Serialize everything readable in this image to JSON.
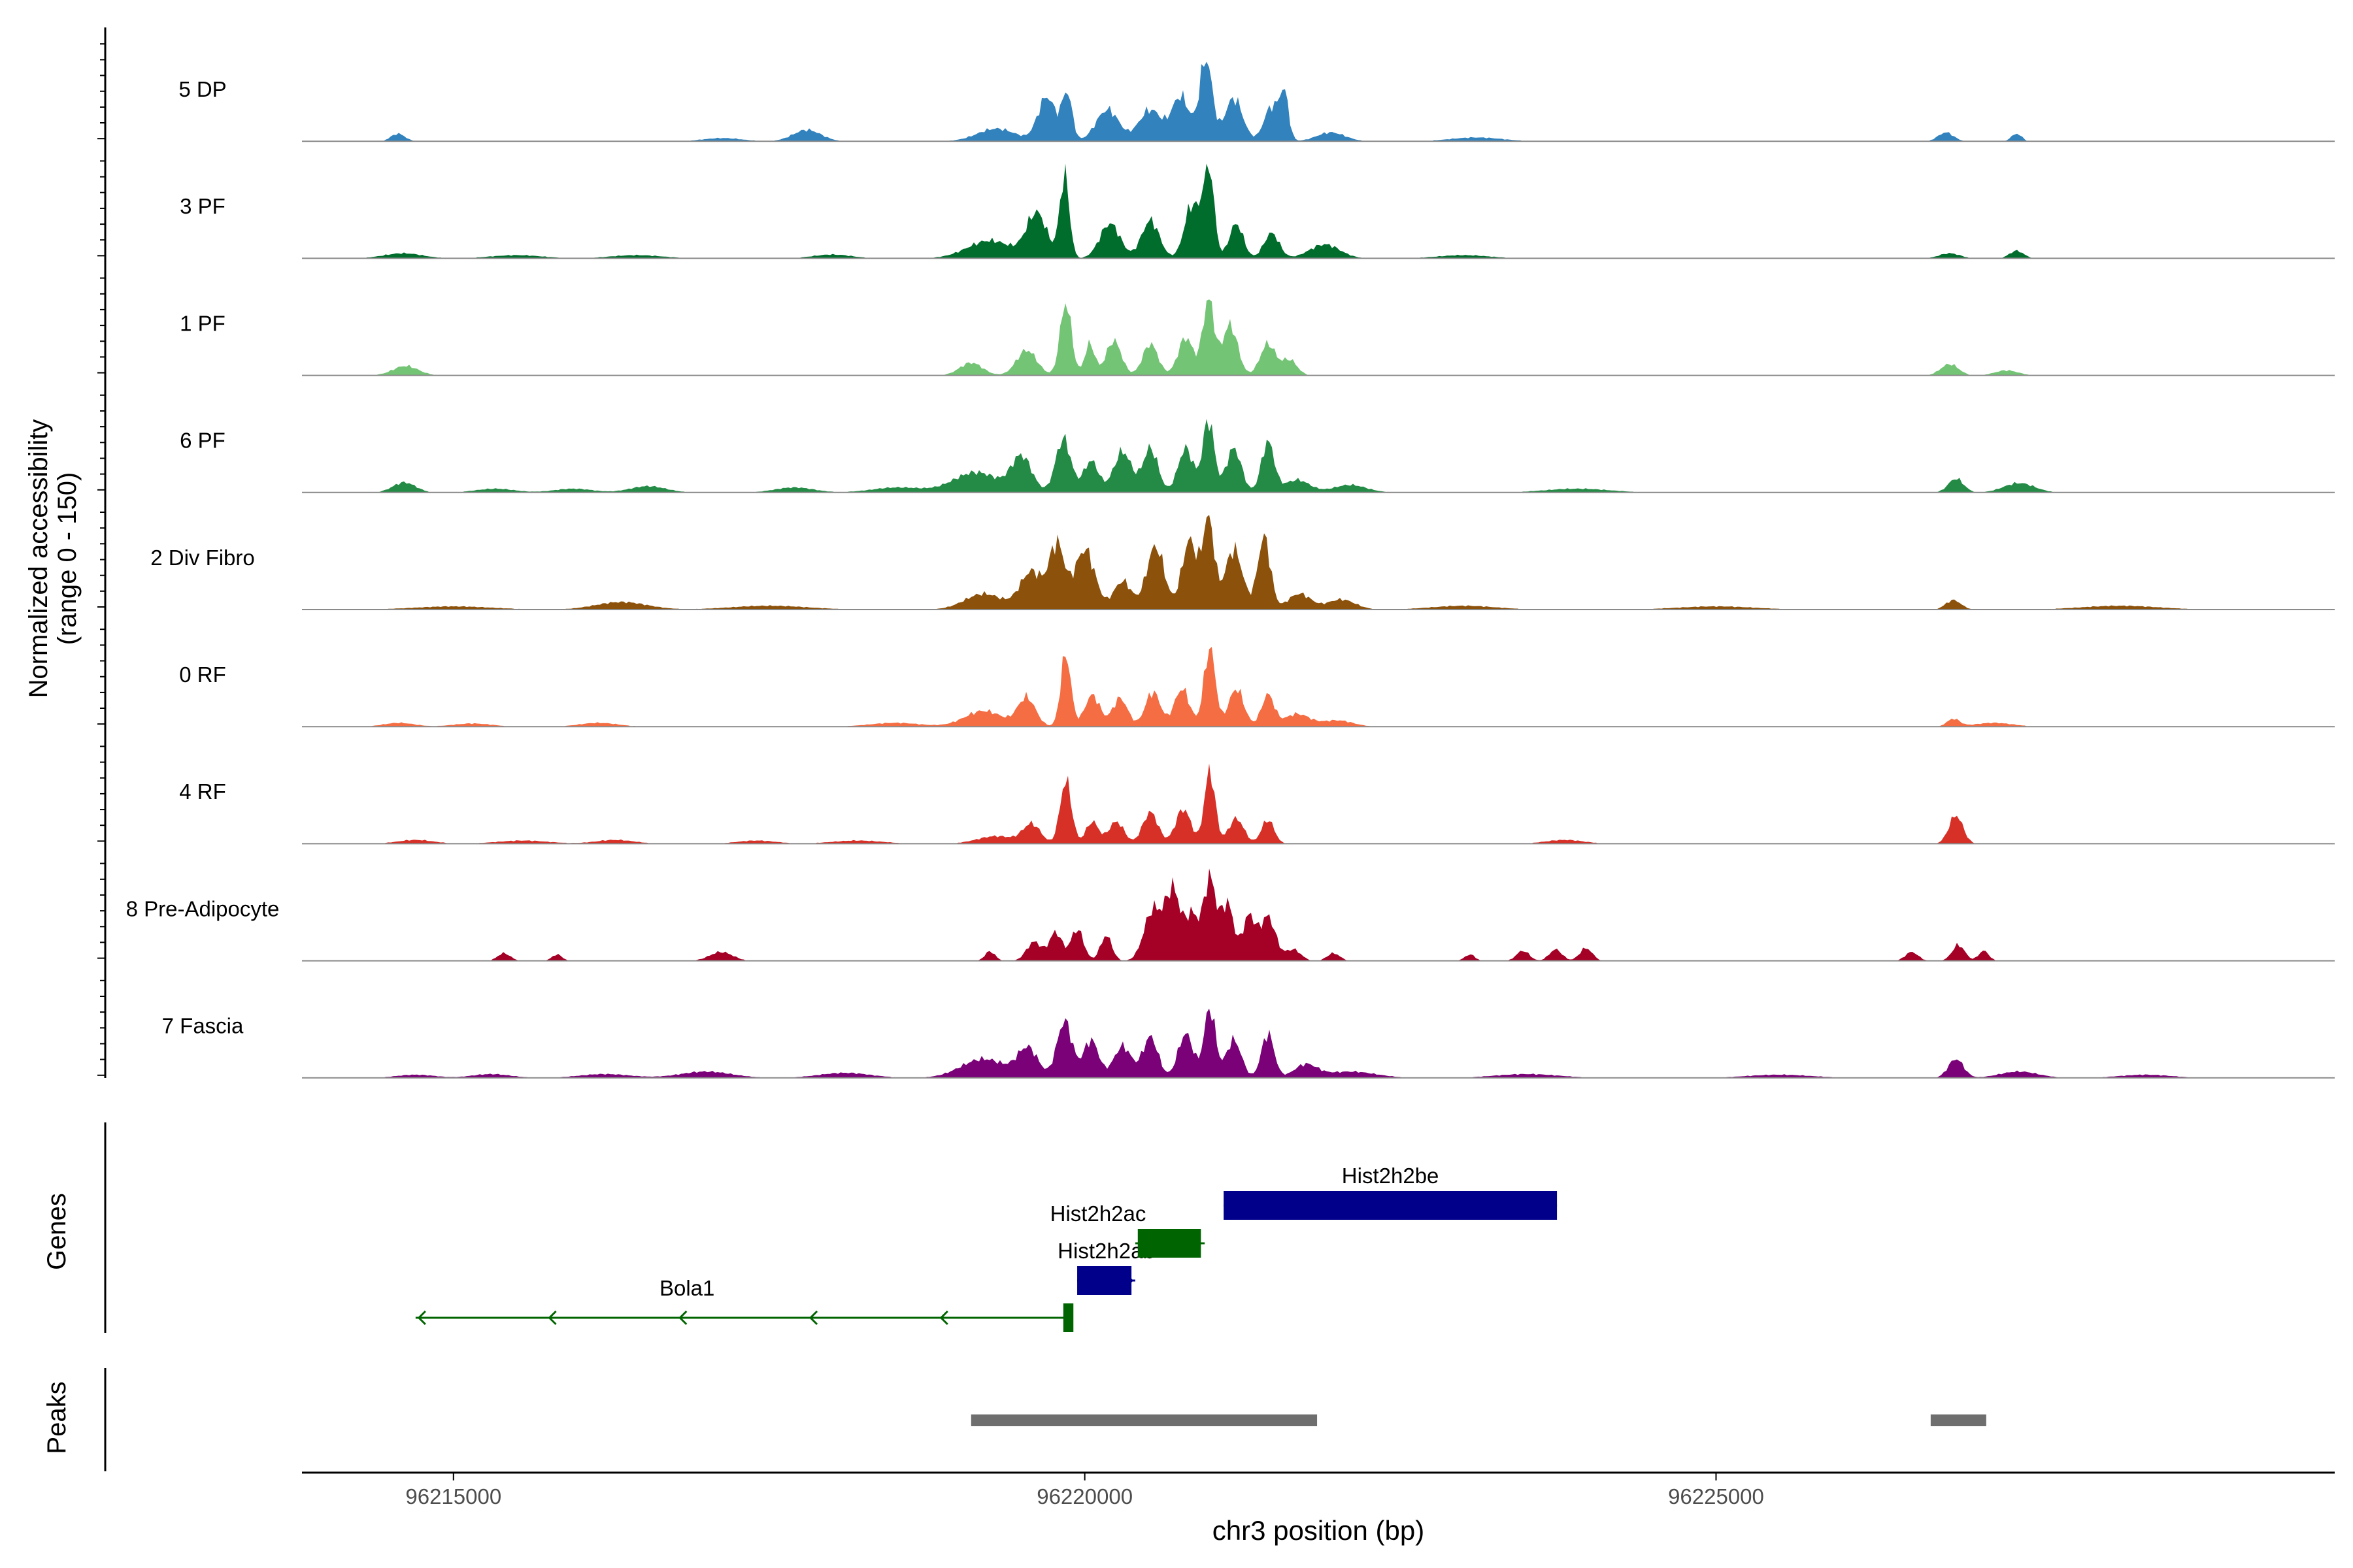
{
  "chart_data": {
    "type": "area",
    "title": "",
    "region": "chr3",
    "x_range": [
      96213800,
      96229900
    ],
    "xlabel": "chr3 position (bp)",
    "x_ticks": [
      96215000,
      96220000,
      96225000
    ],
    "x_tick_labels": [
      "96215000",
      "96220000",
      "96225000"
    ],
    "ylabel": "Normalized accessibility",
    "ylabel_sub": "(range 0 - 150)",
    "ylim": [
      0,
      150
    ],
    "series": [
      {
        "name": "5 DP",
        "color": "#3182bd",
        "peaks": [
          [
            96214560,
            12,
            55
          ],
          [
            96217130,
            5,
            150
          ],
          [
            96217800,
            18,
            110
          ],
          [
            96219300,
            20,
            150
          ],
          [
            96219700,
            70,
            70
          ],
          [
            96219860,
            75,
            40
          ],
          [
            96220180,
            50,
            90
          ],
          [
            96220520,
            50,
            90
          ],
          [
            96220760,
            70,
            70
          ],
          [
            96220960,
            130,
            50
          ],
          [
            96221180,
            68,
            70
          ],
          [
            96221480,
            55,
            60
          ],
          [
            96221580,
            70,
            35
          ],
          [
            96221950,
            14,
            110
          ],
          [
            96223100,
            6,
            200
          ],
          [
            96226820,
            14,
            60
          ],
          [
            96227380,
            12,
            40
          ]
        ]
      },
      {
        "name": "3 PF",
        "color": "#006d2c",
        "peaks": [
          [
            96214600,
            8,
            150
          ],
          [
            96215500,
            5,
            200
          ],
          [
            96216450,
            5,
            200
          ],
          [
            96218000,
            6,
            150
          ],
          [
            96219250,
            28,
            180
          ],
          [
            96219620,
            70,
            80
          ],
          [
            96219840,
            130,
            38
          ],
          [
            96220200,
            55,
            80
          ],
          [
            96220520,
            60,
            70
          ],
          [
            96220850,
            85,
            60
          ],
          [
            96220980,
            150,
            42
          ],
          [
            96221200,
            55,
            55
          ],
          [
            96221480,
            40,
            60
          ],
          [
            96221900,
            22,
            120
          ],
          [
            96223000,
            5,
            200
          ],
          [
            96226850,
            8,
            80
          ],
          [
            96227380,
            12,
            55
          ]
        ]
      },
      {
        "name": "1 PF",
        "color": "#74c476",
        "peaks": [
          [
            96214620,
            15,
            100
          ],
          [
            96219100,
            20,
            90
          ],
          [
            96219540,
            40,
            80
          ],
          [
            96219850,
            115,
            45
          ],
          [
            96220040,
            50,
            40
          ],
          [
            96220230,
            55,
            60
          ],
          [
            96220520,
            50,
            60
          ],
          [
            96220800,
            60,
            60
          ],
          [
            96220980,
            120,
            45
          ],
          [
            96221150,
            80,
            60
          ],
          [
            96221450,
            50,
            60
          ],
          [
            96221620,
            25,
            60
          ],
          [
            96226850,
            18,
            70
          ],
          [
            96227300,
            8,
            90
          ]
        ]
      },
      {
        "name": "6 PF",
        "color": "#238b45",
        "peaks": [
          [
            96214610,
            16,
            90
          ],
          [
            96215330,
            6,
            150
          ],
          [
            96215950,
            6,
            150
          ],
          [
            96216540,
            10,
            140
          ],
          [
            96217700,
            8,
            150
          ],
          [
            96218520,
            8,
            200
          ],
          [
            96219140,
            32,
            180
          ],
          [
            96219500,
            55,
            80
          ],
          [
            96219830,
            85,
            60
          ],
          [
            96220050,
            50,
            60
          ],
          [
            96220300,
            65,
            70
          ],
          [
            96220520,
            70,
            60
          ],
          [
            96220800,
            70,
            60
          ],
          [
            96220980,
            115,
            45
          ],
          [
            96221180,
            70,
            60
          ],
          [
            96221450,
            80,
            50
          ],
          [
            96221680,
            20,
            100
          ],
          [
            96222100,
            12,
            130
          ],
          [
            96223900,
            6,
            250
          ],
          [
            96226900,
            22,
            60
          ],
          [
            96227400,
            15,
            120
          ]
        ]
      },
      {
        "name": "2 Div Fibro",
        "color": "#8c510a",
        "peaks": [
          [
            96215000,
            5,
            300
          ],
          [
            96216330,
            12,
            200
          ],
          [
            96217500,
            6,
            300
          ],
          [
            96219200,
            25,
            150
          ],
          [
            96219580,
            60,
            90
          ],
          [
            96219780,
            100,
            60
          ],
          [
            96220000,
            95,
            80
          ],
          [
            96220300,
            45,
            70
          ],
          [
            96220560,
            100,
            70
          ],
          [
            96220830,
            110,
            60
          ],
          [
            96220980,
            145,
            45
          ],
          [
            96221180,
            95,
            70
          ],
          [
            96221420,
            115,
            50
          ],
          [
            96221700,
            25,
            90
          ],
          [
            96222030,
            16,
            110
          ],
          [
            96223000,
            6,
            250
          ],
          [
            96225000,
            5,
            300
          ],
          [
            96226880,
            15,
            60
          ],
          [
            96228200,
            6,
            300
          ]
        ]
      },
      {
        "name": "0 RF",
        "color": "#f46d43",
        "peaks": [
          [
            96214570,
            6,
            120
          ],
          [
            96215150,
            5,
            150
          ],
          [
            96216150,
            6,
            150
          ],
          [
            96218500,
            6,
            200
          ],
          [
            96219200,
            25,
            150
          ],
          [
            96219540,
            45,
            70
          ],
          [
            96219850,
            115,
            40
          ],
          [
            96220060,
            50,
            60
          ],
          [
            96220280,
            45,
            60
          ],
          [
            96220540,
            55,
            60
          ],
          [
            96220770,
            60,
            60
          ],
          [
            96220990,
            125,
            45
          ],
          [
            96221200,
            60,
            60
          ],
          [
            96221450,
            50,
            50
          ],
          [
            96221680,
            20,
            100
          ],
          [
            96222000,
            10,
            120
          ],
          [
            96226880,
            12,
            50
          ],
          [
            96227200,
            6,
            150
          ]
        ]
      },
      {
        "name": "4 RF",
        "color": "#d73027",
        "peaks": [
          [
            96214700,
            6,
            140
          ],
          [
            96215550,
            5,
            200
          ],
          [
            96216280,
            6,
            150
          ],
          [
            96217400,
            5,
            150
          ],
          [
            96218200,
            5,
            200
          ],
          [
            96219300,
            12,
            150
          ],
          [
            96219580,
            30,
            70
          ],
          [
            96219850,
            100,
            45
          ],
          [
            96220060,
            35,
            50
          ],
          [
            96220250,
            35,
            60
          ],
          [
            96220520,
            50,
            60
          ],
          [
            96220780,
            55,
            60
          ],
          [
            96220990,
            115,
            42
          ],
          [
            96221200,
            40,
            60
          ],
          [
            96221450,
            38,
            50
          ],
          [
            96223800,
            6,
            150
          ],
          [
            96226900,
            45,
            55
          ]
        ]
      },
      {
        "name": "8 Pre-Adipocyte",
        "color": "#a50026",
        "peaks": [
          [
            96215400,
            12,
            50
          ],
          [
            96215820,
            10,
            40
          ],
          [
            96217120,
            14,
            90
          ],
          [
            96219250,
            15,
            40
          ],
          [
            96219600,
            30,
            60
          ],
          [
            96219770,
            45,
            50
          ],
          [
            96219940,
            50,
            50
          ],
          [
            96220170,
            40,
            45
          ],
          [
            96220540,
            80,
            70
          ],
          [
            96220700,
            110,
            60
          ],
          [
            96220850,
            70,
            50
          ],
          [
            96220990,
            130,
            50
          ],
          [
            96221130,
            90,
            50
          ],
          [
            96221300,
            70,
            50
          ],
          [
            96221450,
            70,
            60
          ],
          [
            96221650,
            18,
            60
          ],
          [
            96221970,
            12,
            50
          ],
          [
            96223050,
            10,
            40
          ],
          [
            96223470,
            16,
            50
          ],
          [
            96223730,
            18,
            50
          ],
          [
            96223970,
            20,
            50
          ],
          [
            96226550,
            14,
            50
          ],
          [
            96226920,
            25,
            50
          ],
          [
            96227120,
            16,
            40
          ]
        ]
      },
      {
        "name": "7 Fascia",
        "color": "#7a0177",
        "peaks": [
          [
            96214700,
            5,
            150
          ],
          [
            96215300,
            6,
            150
          ],
          [
            96216200,
            6,
            200
          ],
          [
            96217000,
            10,
            200
          ],
          [
            96218100,
            8,
            200
          ],
          [
            96219200,
            30,
            180
          ],
          [
            96219550,
            45,
            80
          ],
          [
            96219840,
            90,
            60
          ],
          [
            96220050,
            60,
            60
          ],
          [
            96220300,
            50,
            70
          ],
          [
            96220520,
            65,
            60
          ],
          [
            96220800,
            70,
            60
          ],
          [
            96220990,
            110,
            45
          ],
          [
            96221180,
            60,
            60
          ],
          [
            96221450,
            70,
            50
          ],
          [
            96221750,
            20,
            90
          ],
          [
            96222100,
            10,
            200
          ],
          [
            96223500,
            6,
            250
          ],
          [
            96225500,
            5,
            250
          ],
          [
            96226900,
            30,
            60
          ],
          [
            96227400,
            10,
            150
          ],
          [
            96228400,
            5,
            200
          ]
        ]
      }
    ],
    "genes_track_label": "Genes",
    "genes": [
      {
        "name": "Bola1",
        "start": 96214700,
        "end": 96219870,
        "strand": "-",
        "color": "#006400",
        "row": 3,
        "exons": [
          [
            96219830,
            96219910
          ]
        ]
      },
      {
        "name": "Hist2h2ab",
        "start": 96219940,
        "end": 96220400,
        "strand": "+",
        "color": "#00008b",
        "row": 2,
        "exons": [
          [
            96219940,
            96220370
          ]
        ]
      },
      {
        "name": "Hist2h2ac",
        "start": 96220400,
        "end": 96220950,
        "strand": "-",
        "color": "#006400",
        "row": 1,
        "exons": [
          [
            96220420,
            96220920
          ]
        ]
      },
      {
        "name": "Hist2h2be",
        "start": 96221100,
        "end": 96223740,
        "strand": "-",
        "color": "#00008b",
        "row": 0,
        "exons": [
          [
            96221100,
            96223740
          ]
        ]
      }
    ],
    "peaks_track_label": "Peaks",
    "peaks": [
      [
        96219100,
        96221840
      ],
      [
        96226700,
        96227140
      ]
    ]
  }
}
